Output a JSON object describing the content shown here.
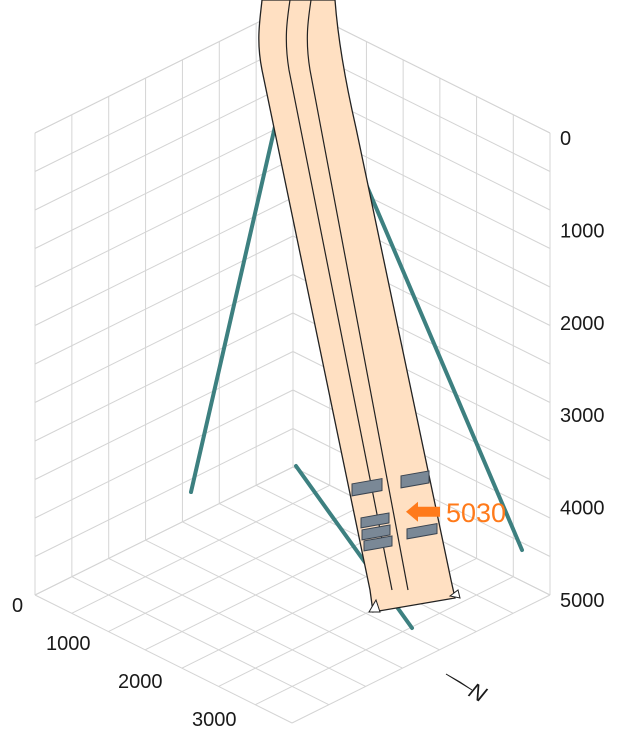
{
  "chart_data": {
    "type": "3d-well-trajectory",
    "title": "",
    "depth_axis": {
      "ticks": [
        "0",
        "1000",
        "2000",
        "3000",
        "4000",
        "5000"
      ],
      "values": [
        0,
        1000,
        2000,
        3000,
        4000,
        5000
      ],
      "range": [
        0,
        5000
      ],
      "inverted": true
    },
    "horizontal_axis": {
      "ticks": [
        "0",
        "1000",
        "2000",
        "3000"
      ],
      "values": [
        0,
        1000,
        2000,
        3000
      ]
    },
    "grid": true,
    "compass": {
      "label": "N"
    },
    "well": {
      "fill_color": "#ffe0c2",
      "outline_color": "#222222",
      "strings": 2,
      "completion_color": "#7a8896"
    },
    "projections": {
      "color": "#3d8080"
    },
    "marker": {
      "label": "5030",
      "depth": 5030,
      "color": "#ff7a1a"
    }
  }
}
